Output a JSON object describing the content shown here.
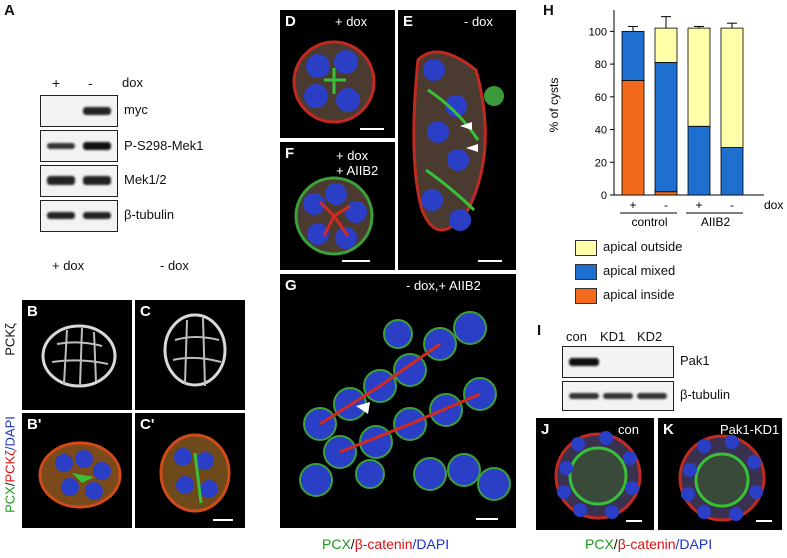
{
  "panels": {
    "A": {
      "letter": "A",
      "lanes": [
        "+",
        "-"
      ],
      "treatment": "dox",
      "blots": [
        "myc",
        "P-S298-Mek1",
        "Mek1/2",
        "β-tubulin"
      ]
    },
    "B": {
      "letter": "B",
      "cond": "+ dox"
    },
    "C": {
      "letter": "C",
      "cond": "- dox"
    },
    "Bp": {
      "letter": "B'"
    },
    "Cp": {
      "letter": "C'"
    },
    "row_label_top": "PCKζ",
    "row_label_bottom": [
      "PCX",
      "/",
      "PCKζ",
      "/DAPI"
    ],
    "D": {
      "letter": "D",
      "cond": "+ dox"
    },
    "E": {
      "letter": "E",
      "cond": "- dox"
    },
    "F": {
      "letter": "F",
      "cond": [
        "+ dox",
        "+ AIIB2"
      ]
    },
    "G": {
      "letter": "G",
      "cond": "- dox,+ AIIB2"
    },
    "DG_caption": [
      "PCX",
      "/",
      "β-catenin",
      "/DAPI"
    ],
    "H": {
      "letter": "H",
      "ylabel": "% of cysts",
      "yticks": [
        "0",
        "20",
        "40",
        "60",
        "80",
        "100"
      ],
      "dox_row": [
        "+",
        "-",
        "+",
        "-"
      ],
      "dox_label": "dox",
      "groups": [
        "control",
        "AIIB2"
      ],
      "legend": [
        "apical outside",
        "apical mixed",
        "apical inside"
      ],
      "colors": {
        "outside": "#ffffaa",
        "mixed": "#1f6fd1",
        "inside": "#f26a1b"
      }
    },
    "I": {
      "letter": "I",
      "lanes": [
        "con",
        "KD1",
        "KD2"
      ],
      "blots": [
        "Pak1",
        "β-tubulin"
      ]
    },
    "J": {
      "letter": "J",
      "cond": "con"
    },
    "K": {
      "letter": "K",
      "cond": "Pak1-KD1"
    },
    "JK_caption": [
      "PCX",
      "/",
      "β-catenin",
      "/DAPI"
    ]
  },
  "chart_data": {
    "type": "bar",
    "stacked": true,
    "categories": [
      "control +",
      "control -",
      "AIIB2 +",
      "AIIB2 -"
    ],
    "series": [
      {
        "name": "apical inside",
        "values": [
          70,
          2,
          0,
          0
        ]
      },
      {
        "name": "apical mixed",
        "values": [
          30,
          79,
          42,
          29
        ]
      },
      {
        "name": "apical outside",
        "values": [
          0,
          21,
          60,
          73
        ]
      }
    ],
    "errors_top": [
      3,
      7,
      1,
      3
    ],
    "ylabel": "% of cysts",
    "ylim": [
      0,
      110
    ],
    "yticks": [
      0,
      20,
      40,
      60,
      80,
      100
    ],
    "legend_position": "bottom"
  }
}
